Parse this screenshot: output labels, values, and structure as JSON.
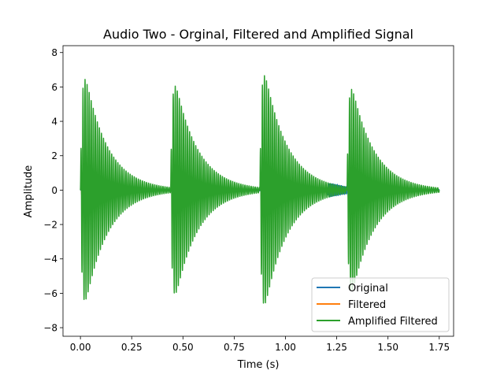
{
  "chart_data": {
    "type": "line",
    "title": "Audio Two - Orginal, Filtered and Amplified Signal",
    "xlabel": "Time (s)",
    "ylabel": "Amplitude",
    "xlim": [
      -0.085,
      1.82
    ],
    "ylim": [
      -8.5,
      8.4
    ],
    "xticks": [
      0.0,
      0.25,
      0.5,
      0.75,
      1.0,
      1.25,
      1.5,
      1.75
    ],
    "xtick_labels": [
      "0.00",
      "0.25",
      "0.50",
      "0.75",
      "1.00",
      "1.25",
      "1.50",
      "1.75"
    ],
    "yticks": [
      -8,
      -6,
      -4,
      -2,
      0,
      2,
      4,
      6,
      8
    ],
    "ytick_labels": [
      "−8",
      "−6",
      "−4",
      "−2",
      "0",
      "2",
      "4",
      "6",
      "8"
    ],
    "grid": false,
    "legend_position": "lower-right",
    "series": [
      {
        "name": "Original",
        "color": "#1f77b4",
        "bursts": [
          {
            "onset": 0.0,
            "peak": 0.7
          },
          {
            "onset": 0.44,
            "peak": 0.7
          },
          {
            "onset": 0.875,
            "peak": 0.75
          },
          {
            "onset": 1.2,
            "peak": 0.45
          },
          {
            "onset": 1.3,
            "peak": 0.7
          }
        ]
      },
      {
        "name": "Filtered",
        "color": "#ff7f0e",
        "bursts": [
          {
            "onset": 0.0,
            "peak": 0.75
          },
          {
            "onset": 0.44,
            "peak": 0.7
          },
          {
            "onset": 0.875,
            "peak": 0.75
          },
          {
            "onset": 1.3,
            "peak": 0.7
          }
        ]
      },
      {
        "name": "Amplified Filtered",
        "color": "#2ca02c",
        "bursts": [
          {
            "onset": 0.0,
            "peak": 7.5
          },
          {
            "onset": 0.44,
            "peak": 6.9
          },
          {
            "onset": 0.875,
            "peak": 7.9
          },
          {
            "onset": 1.3,
            "peak": 7.0
          }
        ]
      }
    ]
  }
}
